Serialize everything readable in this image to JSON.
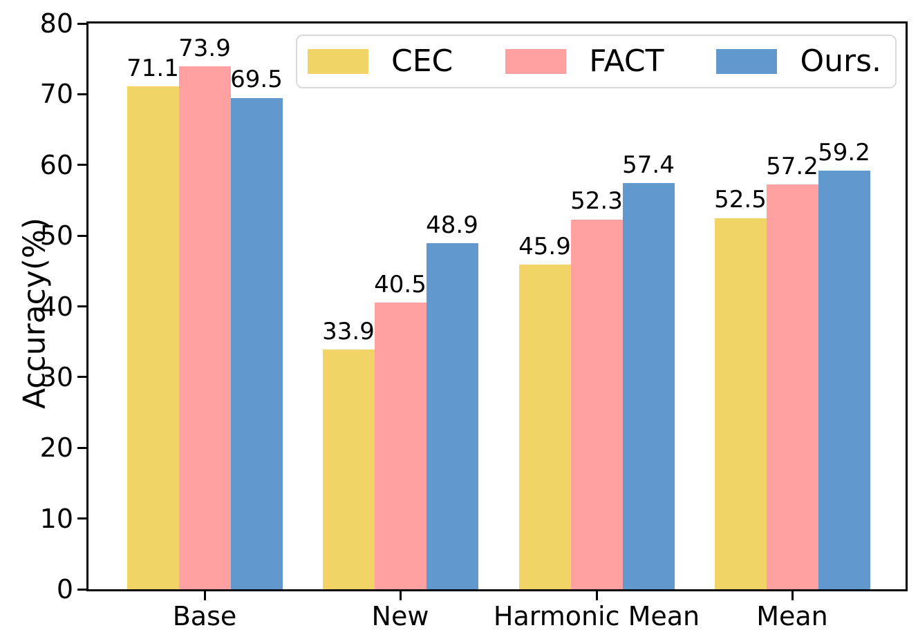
{
  "chart_data": {
    "type": "bar",
    "title": "",
    "categories": [
      "Base",
      "New",
      "Harmonic Mean",
      "Mean"
    ],
    "series": [
      {
        "name": "CEC",
        "color": "#F1D366",
        "values": [
          71.1,
          33.9,
          45.9,
          52.5
        ]
      },
      {
        "name": "FACT",
        "color": "#FFA1A1",
        "values": [
          73.9,
          40.5,
          52.3,
          57.2
        ]
      },
      {
        "name": "Ours.",
        "color": "#6198CD",
        "values": [
          69.5,
          48.9,
          57.4,
          59.2
        ]
      }
    ],
    "xlabel": "",
    "ylabel": "Accuracy(%)",
    "ylim": [
      0,
      80
    ],
    "yticks": [
      0,
      10,
      20,
      30,
      40,
      50,
      60,
      70,
      80
    ],
    "grid": false,
    "legend_position": "upper-center-inside",
    "value_labels": true,
    "value_label_format": ".1f",
    "axis_color": "#000000",
    "background_color": "#ffffff"
  }
}
